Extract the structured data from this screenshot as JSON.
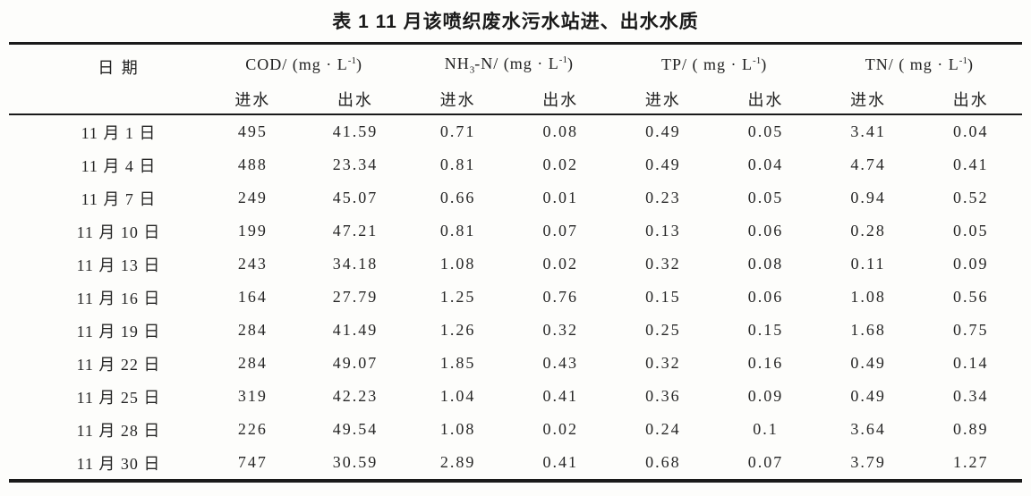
{
  "colors": {
    "rule": "#1a1a1a",
    "text": "#222222",
    "background": "#fdfdfb"
  },
  "title": "表 1 11 月该喷织废水污水站进、出水水质",
  "table": {
    "date_header": "日 期",
    "subheader_in": "进水",
    "subheader_out": "出水",
    "groups": [
      {
        "id": "cod",
        "parts": [
          {
            "t": "COD/ (mg · L"
          },
          {
            "t": "-1",
            "style": "sup"
          },
          {
            "t": ")"
          }
        ]
      },
      {
        "id": "nh3n",
        "parts": [
          {
            "t": "NH"
          },
          {
            "t": "3",
            "style": "sub"
          },
          {
            "t": "-N/ (mg · L"
          },
          {
            "t": "-1",
            "style": "sup"
          },
          {
            "t": ")"
          }
        ]
      },
      {
        "id": "tp",
        "parts": [
          {
            "t": "TP/ ( mg · L"
          },
          {
            "t": "-1",
            "style": "sup"
          },
          {
            "t": ")"
          }
        ]
      },
      {
        "id": "tn",
        "parts": [
          {
            "t": "TN/ ( mg · L"
          },
          {
            "t": "-1",
            "style": "sup"
          },
          {
            "t": ")"
          }
        ]
      }
    ],
    "rows": [
      {
        "date": "11 月 1 日",
        "values": [
          "495",
          "41.59",
          "0.71",
          "0.08",
          "0.49",
          "0.05",
          "3.41",
          "0.04"
        ]
      },
      {
        "date": "11 月 4 日",
        "values": [
          "488",
          "23.34",
          "0.81",
          "0.02",
          "0.49",
          "0.04",
          "4.74",
          "0.41"
        ]
      },
      {
        "date": "11 月 7 日",
        "values": [
          "249",
          "45.07",
          "0.66",
          "0.01",
          "0.23",
          "0.05",
          "0.94",
          "0.52"
        ]
      },
      {
        "date": "11 月 10 日",
        "values": [
          "199",
          "47.21",
          "0.81",
          "0.07",
          "0.13",
          "0.06",
          "0.28",
          "0.05"
        ]
      },
      {
        "date": "11 月 13 日",
        "values": [
          "243",
          "34.18",
          "1.08",
          "0.02",
          "0.32",
          "0.08",
          "0.11",
          "0.09"
        ]
      },
      {
        "date": "11 月 16 日",
        "values": [
          "164",
          "27.79",
          "1.25",
          "0.76",
          "0.15",
          "0.06",
          "1.08",
          "0.56"
        ]
      },
      {
        "date": "11 月 19 日",
        "values": [
          "284",
          "41.49",
          "1.26",
          "0.32",
          "0.25",
          "0.15",
          "1.68",
          "0.75"
        ]
      },
      {
        "date": "11 月 22 日",
        "values": [
          "284",
          "49.07",
          "1.85",
          "0.43",
          "0.32",
          "0.16",
          "0.49",
          "0.14"
        ]
      },
      {
        "date": "11 月 25 日",
        "values": [
          "319",
          "42.23",
          "1.04",
          "0.41",
          "0.36",
          "0.09",
          "0.49",
          "0.34"
        ]
      },
      {
        "date": "11 月 28 日",
        "values": [
          "226",
          "49.54",
          "1.08",
          "0.02",
          "0.24",
          "0.1",
          "3.64",
          "0.89"
        ]
      },
      {
        "date": "11 月 30 日",
        "values": [
          "747",
          "30.59",
          "2.89",
          "0.41",
          "0.68",
          "0.07",
          "3.79",
          "1.27"
        ]
      }
    ]
  }
}
